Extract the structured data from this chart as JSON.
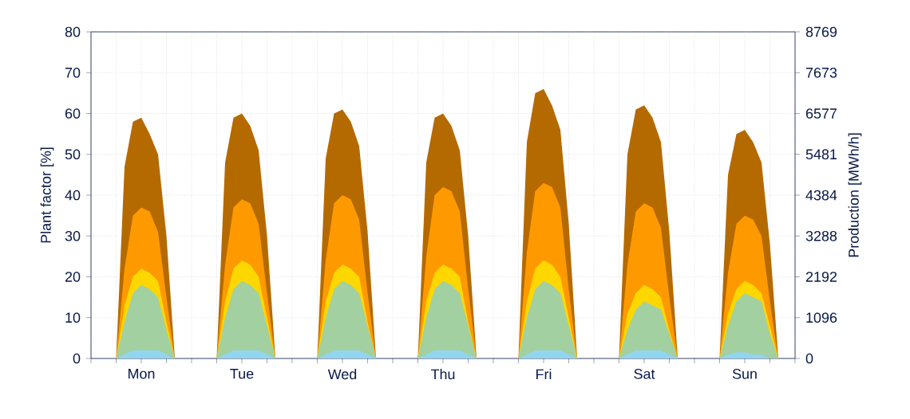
{
  "chart_data": {
    "type": "area",
    "ylabel": "Plant factor [%]",
    "y2label": "Production [MWh/h]",
    "categories": [
      null,
      null,
      null,
      null,
      null,
      null,
      "Mon",
      null,
      null,
      null,
      null,
      null,
      null,
      null,
      null,
      null,
      null,
      null,
      "Tue",
      null,
      null,
      null,
      null,
      null,
      null,
      null,
      null,
      null,
      null,
      null,
      "Wed",
      null,
      null,
      null,
      null,
      null,
      null,
      null,
      null,
      null,
      null,
      null,
      "Thu",
      null,
      null,
      null,
      null,
      null,
      null,
      null,
      null,
      null,
      null,
      null,
      "Fri",
      null,
      null,
      null,
      null,
      null,
      null,
      null,
      null,
      null,
      null,
      null,
      "Sat",
      null,
      null,
      null,
      null,
      null,
      null,
      null,
      null,
      null,
      null,
      null,
      "Sun",
      null,
      null,
      null,
      null,
      null
    ],
    "ylim": [
      0,
      80
    ],
    "yticks": [
      0,
      10,
      20,
      30,
      40,
      50,
      60,
      70,
      80
    ],
    "y2lim": [
      0,
      8769
    ],
    "y2ticks": [
      0,
      1096,
      2192,
      3288,
      4384,
      5481,
      6577,
      7673,
      8769
    ],
    "grid": true,
    "series": [
      {
        "color": "#b56a00",
        "values": [
          0,
          0,
          0,
          0,
          47,
          58,
          59,
          55,
          50,
          30,
          0,
          0,
          0,
          0,
          0,
          0,
          48,
          59,
          60,
          57,
          51,
          30,
          0,
          0,
          0,
          0,
          0,
          0,
          49,
          60,
          61,
          58,
          52,
          31,
          0,
          0,
          0,
          0,
          0,
          0,
          48,
          59,
          60,
          57,
          51,
          30,
          0,
          0,
          0,
          0,
          0,
          0,
          53,
          65,
          66,
          62,
          56,
          33,
          0,
          0,
          0,
          0,
          0,
          0,
          50,
          61,
          62,
          59,
          53,
          31,
          0,
          0,
          0,
          0,
          0,
          0,
          45,
          55,
          56,
          53,
          48,
          28,
          0,
          0
        ]
      },
      {
        "color": "#ff9900",
        "values": [
          0,
          0,
          0,
          0,
          22,
          35,
          37,
          36,
          31,
          15,
          0,
          0,
          0,
          0,
          0,
          0,
          23,
          37,
          39,
          38,
          33,
          16,
          0,
          0,
          0,
          0,
          0,
          0,
          24,
          38,
          40,
          39,
          34,
          16,
          0,
          0,
          0,
          0,
          0,
          0,
          25,
          40,
          42,
          41,
          36,
          17,
          0,
          0,
          0,
          0,
          0,
          0,
          26,
          41,
          43,
          42,
          37,
          17,
          0,
          0,
          0,
          0,
          0,
          0,
          23,
          36,
          38,
          37,
          32,
          15,
          0,
          0,
          0,
          0,
          0,
          0,
          21,
          33,
          35,
          34,
          30,
          14,
          0,
          0
        ]
      },
      {
        "color": "#ffd700",
        "values": [
          0,
          0,
          0,
          0,
          13,
          20,
          22,
          21,
          19,
          9,
          0,
          0,
          0,
          0,
          0,
          0,
          14,
          22,
          24,
          23,
          20,
          10,
          0,
          0,
          0,
          0,
          0,
          0,
          14,
          21,
          23,
          22,
          20,
          9,
          0,
          0,
          0,
          0,
          0,
          0,
          14,
          21,
          23,
          22,
          20,
          9,
          0,
          0,
          0,
          0,
          0,
          0,
          14,
          22,
          24,
          23,
          20,
          10,
          0,
          0,
          0,
          0,
          0,
          0,
          11,
          16,
          18,
          17,
          15,
          7,
          0,
          0,
          0,
          0,
          0,
          0,
          11,
          17,
          19,
          18,
          16,
          8,
          0,
          0
        ]
      },
      {
        "color": "#a2d0a0",
        "values": [
          0,
          0,
          0,
          0,
          9,
          16,
          18,
          17,
          15,
          7,
          0,
          0,
          0,
          0,
          0,
          0,
          10,
          17,
          19,
          18,
          16,
          8,
          0,
          0,
          0,
          0,
          0,
          0,
          10,
          17,
          19,
          18,
          16,
          8,
          0,
          0,
          0,
          0,
          0,
          0,
          10,
          17,
          19,
          18,
          16,
          8,
          0,
          0,
          0,
          0,
          0,
          0,
          10,
          17,
          19,
          18,
          16,
          8,
          0,
          0,
          0,
          0,
          0,
          0,
          7,
          12,
          14,
          13,
          12,
          6,
          0,
          0,
          0,
          0,
          0,
          0,
          8,
          14,
          16,
          15,
          14,
          6,
          0,
          0
        ]
      },
      {
        "color": "#93d4ee",
        "values": [
          0,
          0,
          0,
          0,
          1,
          2,
          2,
          2,
          2,
          1,
          0,
          0,
          0,
          0,
          0,
          0,
          1,
          2,
          2,
          2,
          2,
          1,
          0,
          0,
          0,
          0,
          0,
          0,
          1,
          2,
          2,
          2,
          2,
          1,
          0,
          0,
          0,
          0,
          0,
          0,
          1,
          2,
          2,
          2,
          2,
          1,
          0,
          0,
          0,
          0,
          0,
          0,
          1,
          2,
          2,
          2,
          2,
          1,
          0,
          0,
          0,
          0,
          0,
          0,
          1,
          2,
          2,
          2,
          2,
          1,
          0,
          0,
          0,
          0,
          0,
          0,
          1,
          1.5,
          1.5,
          1,
          1,
          0,
          0,
          0
        ]
      }
    ]
  }
}
